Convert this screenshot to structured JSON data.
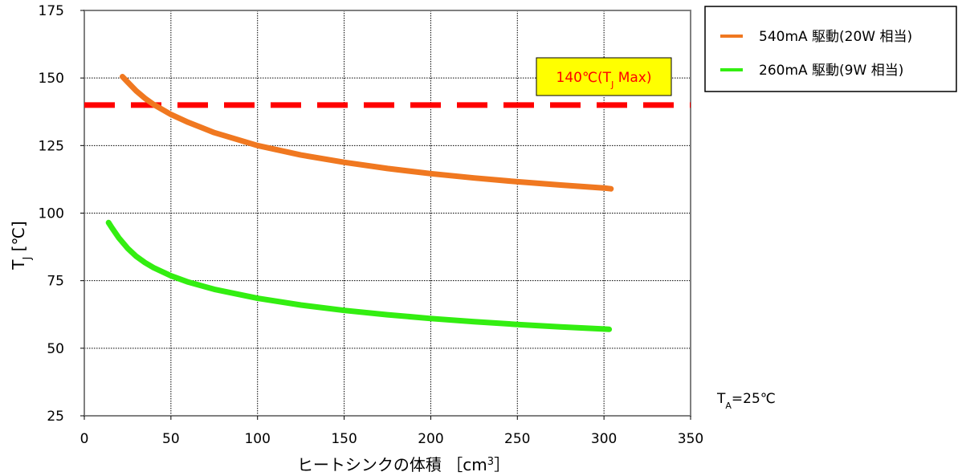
{
  "colors": {
    "series_540": "#f07820",
    "series_260": "#33ee11",
    "limit_line": "#ff0000",
    "annotation_fill": "#ffff00",
    "annotation_text": "#ff0000",
    "grid": "#000000",
    "frame": "#808080"
  },
  "chart_data": {
    "type": "line",
    "xlabel": {
      "text": "ヒートシンクの体積 ［cm",
      "sup": "3",
      "close": "］"
    },
    "ylabel": {
      "main": "T",
      "sub": "J",
      "unit": " [℃]"
    },
    "xlim": [
      0,
      350
    ],
    "ylim": [
      25,
      175
    ],
    "x_ticks": [
      0,
      50,
      100,
      150,
      200,
      250,
      300,
      350
    ],
    "y_ticks": [
      25,
      50,
      75,
      100,
      125,
      150,
      175
    ],
    "grid": true,
    "legend_position": "top-right-outside",
    "series": [
      {
        "name": "540mA 駆動(20W 相当)",
        "x": [
          22,
          25,
          30,
          35,
          40,
          50,
          60,
          75,
          100,
          125,
          150,
          175,
          200,
          225,
          250,
          275,
          300,
          304
        ],
        "y": [
          150.5,
          148.5,
          145.2,
          142.5,
          140.2,
          136.5,
          133.6,
          129.8,
          125.0,
          121.5,
          118.8,
          116.5,
          114.6,
          113.0,
          111.6,
          110.4,
          109.3,
          109.0
        ]
      },
      {
        "name": "260mA 駆動(9W 相当)",
        "x": [
          14,
          16,
          20,
          25,
          30,
          35,
          40,
          50,
          60,
          75,
          100,
          125,
          150,
          175,
          200,
          225,
          250,
          275,
          300,
          303
        ],
        "y": [
          96.5,
          94.5,
          90.8,
          87.0,
          84.0,
          81.7,
          79.8,
          76.8,
          74.5,
          71.8,
          68.5,
          66.0,
          64.0,
          62.4,
          61.0,
          59.8,
          58.8,
          57.9,
          57.1,
          57.0
        ]
      }
    ],
    "limit_line": {
      "y": 140
    },
    "annotations": {
      "limit": {
        "prefix": "140℃(T",
        "sub": "J",
        "suffix": " Max)"
      },
      "ambient": {
        "main": "T",
        "sub": "A",
        "suffix": "=25℃"
      }
    }
  }
}
